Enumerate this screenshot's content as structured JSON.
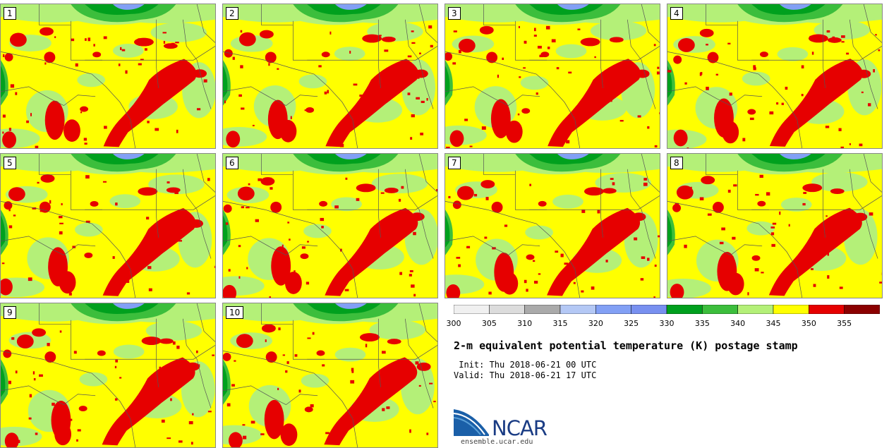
{
  "panels": [
    {
      "label": "1"
    },
    {
      "label": "2"
    },
    {
      "label": "3"
    },
    {
      "label": "4"
    },
    {
      "label": "5"
    },
    {
      "label": "6"
    },
    {
      "label": "7"
    },
    {
      "label": "8"
    },
    {
      "label": "9"
    },
    {
      "label": "10"
    }
  ],
  "colorbar": {
    "colors": [
      "#f0f0f0",
      "#dcdcdc",
      "#aaaaaa",
      "#b4c8f5",
      "#82a0f5",
      "#7890f0",
      "#00a01e",
      "#3cbe3c",
      "#b4f078",
      "#ffff00",
      "#e60000",
      "#8b0000"
    ],
    "tick_labels": [
      "300",
      "305",
      "310",
      "315",
      "320",
      "325",
      "330",
      "335",
      "340",
      "345",
      "350",
      "355"
    ]
  },
  "title": "2-m equivalent potential temperature (K) postage stamp",
  "init_text": " Init: Thu 2018-06-21 00 UTC",
  "valid_text": "Valid: Thu 2018-06-21 17 UTC",
  "logo_text": "NCAR",
  "website": "ensemble.ucar.edu"
}
